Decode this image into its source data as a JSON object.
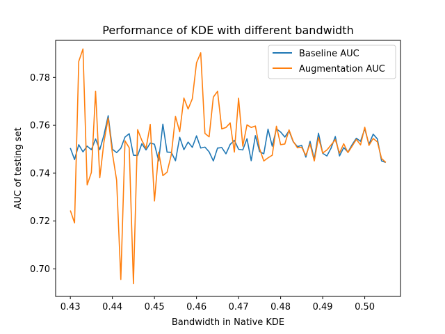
{
  "chart_data": {
    "type": "line",
    "title": "Performance of KDE with different bandwidth",
    "xlabel": "Bandwidth in Native KDE",
    "ylabel": "AUC of testing set",
    "xlim": [
      0.4265,
      0.5085
    ],
    "ylim": [
      0.6885,
      0.7955
    ],
    "x_ticks": [
      0.43,
      0.44,
      0.45,
      0.46,
      0.47,
      0.48,
      0.49,
      0.5
    ],
    "x_tick_labels": [
      "0.43",
      "0.44",
      "0.45",
      "0.46",
      "0.47",
      "0.48",
      "0.49",
      "0.50"
    ],
    "y_ticks": [
      0.7,
      0.72,
      0.74,
      0.76,
      0.78
    ],
    "y_tick_labels": [
      "0.70",
      "0.72",
      "0.74",
      "0.76",
      "0.78"
    ],
    "grid": false,
    "legend_position": "top-right",
    "x": [
      0.43,
      0.431,
      0.432,
      0.433,
      0.434,
      0.435,
      0.436,
      0.437,
      0.438,
      0.439,
      0.44,
      0.441,
      0.442,
      0.443,
      0.444,
      0.445,
      0.446,
      0.447,
      0.448,
      0.449,
      0.45,
      0.451,
      0.452,
      0.453,
      0.454,
      0.455,
      0.456,
      0.457,
      0.458,
      0.459,
      0.46,
      0.461,
      0.462,
      0.463,
      0.464,
      0.465,
      0.466,
      0.467,
      0.468,
      0.469,
      0.47,
      0.471,
      0.472,
      0.473,
      0.474,
      0.475,
      0.476,
      0.477,
      0.478,
      0.479,
      0.48,
      0.481,
      0.482,
      0.483,
      0.484,
      0.485,
      0.486,
      0.487,
      0.488,
      0.489,
      0.49,
      0.491,
      0.492,
      0.493,
      0.494,
      0.495,
      0.496,
      0.497,
      0.498,
      0.499,
      0.5,
      0.501,
      0.502,
      0.503,
      0.504,
      0.505
    ],
    "series": [
      {
        "name": "Baseline AUC",
        "color": "#1f77b4",
        "values": [
          0.7505,
          0.7457,
          0.7519,
          0.7489,
          0.7513,
          0.7498,
          0.7543,
          0.7498,
          0.756,
          0.764,
          0.75,
          0.7486,
          0.7504,
          0.7551,
          0.7565,
          0.7475,
          0.7474,
          0.7523,
          0.7497,
          0.7526,
          0.7521,
          0.7451,
          0.7605,
          0.7488,
          0.7487,
          0.7452,
          0.755,
          0.7498,
          0.753,
          0.7508,
          0.7556,
          0.7505,
          0.7509,
          0.7489,
          0.7451,
          0.7505,
          0.7507,
          0.7481,
          0.752,
          0.7537,
          0.75,
          0.7497,
          0.7544,
          0.7452,
          0.7557,
          0.749,
          0.7481,
          0.7584,
          0.7513,
          0.7585,
          0.7572,
          0.7551,
          0.7577,
          0.7531,
          0.7511,
          0.7516,
          0.7467,
          0.7533,
          0.7458,
          0.7567,
          0.7483,
          0.7472,
          0.7505,
          0.7553,
          0.7472,
          0.7507,
          0.7488,
          0.7519,
          0.7546,
          0.7533,
          0.7586,
          0.752,
          0.7563,
          0.7543,
          0.7451,
          0.7445
        ]
      },
      {
        "name": "Augmentation AUC",
        "color": "#ff7f0e",
        "values": [
          0.7244,
          0.7192,
          0.7867,
          0.7919,
          0.7351,
          0.7403,
          0.7742,
          0.7381,
          0.7531,
          0.763,
          0.7483,
          0.7371,
          0.6956,
          0.7535,
          0.7506,
          0.6939,
          0.7582,
          0.7537,
          0.7504,
          0.7604,
          0.7284,
          0.7488,
          0.739,
          0.7404,
          0.7477,
          0.7637,
          0.7573,
          0.7714,
          0.7668,
          0.7711,
          0.7861,
          0.7903,
          0.7566,
          0.7552,
          0.7718,
          0.7742,
          0.7585,
          0.7591,
          0.761,
          0.7488,
          0.7713,
          0.7513,
          0.7602,
          0.7591,
          0.7597,
          0.7502,
          0.7451,
          0.7464,
          0.7475,
          0.7596,
          0.7519,
          0.7522,
          0.7581,
          0.7533,
          0.7506,
          0.7508,
          0.7475,
          0.7522,
          0.7451,
          0.7549,
          0.7484,
          0.7497,
          0.7518,
          0.754,
          0.7484,
          0.7523,
          0.7486,
          0.7513,
          0.7541,
          0.7518,
          0.7592,
          0.7516,
          0.7545,
          0.7531,
          0.7461,
          0.7445
        ]
      }
    ]
  }
}
